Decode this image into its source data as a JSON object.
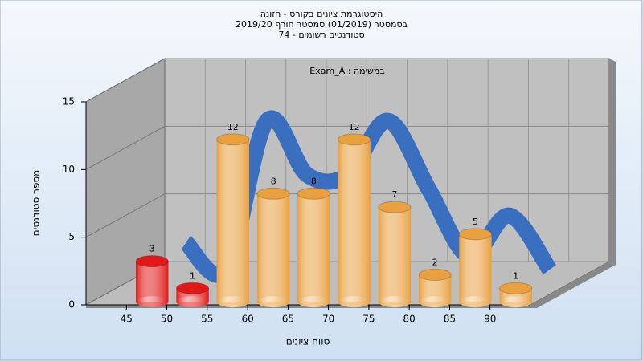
{
  "chart_data": {
    "type": "bar3d",
    "title": "היסטוגרמת ציונים בקורס - חזונה",
    "subtitle": "בסמסטר  (01/2019)  סמסטר חורף 2019/20",
    "caption": "סטודנטים רשומים - 74",
    "annotation": "Exam_A : במשימה",
    "x_label": "טווח ציונים",
    "y_label": "מספר סטודנטים",
    "x": [
      45,
      50,
      55,
      60,
      65,
      70,
      75,
      80,
      85,
      90
    ],
    "bin_width": 5,
    "values": [
      3,
      1,
      12,
      8,
      8,
      12,
      7,
      2,
      5,
      1
    ],
    "colors": [
      "#e01818",
      "#e01818",
      "#e8a040",
      "#e8a040",
      "#e8a040",
      "#e8a040",
      "#e8a040",
      "#e8a040",
      "#e8a040",
      "#e8a040"
    ],
    "line_color": "#3a6fc0",
    "xlim": [
      40,
      95
    ],
    "xticks": [
      45,
      50,
      55,
      60,
      65,
      70,
      75,
      80,
      85,
      90
    ],
    "ylim": [
      0,
      15
    ],
    "yticks": [
      0,
      5,
      10,
      15
    ],
    "grid": true
  }
}
